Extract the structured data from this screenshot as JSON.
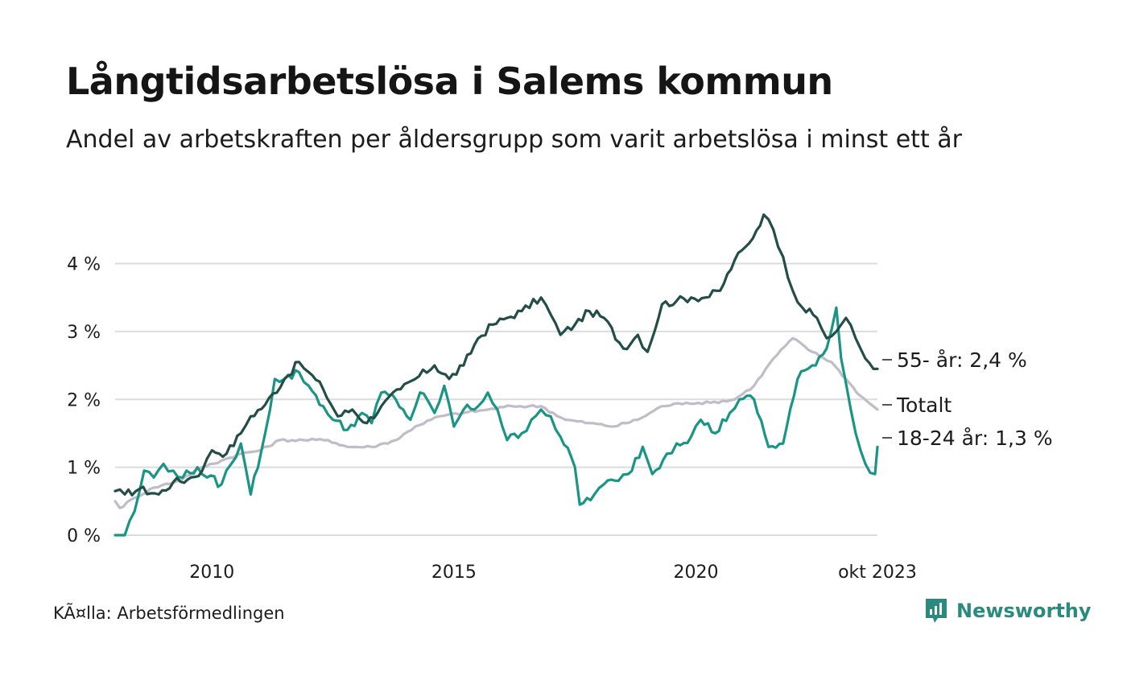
{
  "title": "Långtidsarbetslösa i Salems kommun",
  "subtitle": "Andel av arbetskraften per åldersgrupp som varit arbetslösa i minst ett år",
  "source": "KÃ¤lla: Arbetsförmedlingen",
  "brand": "Newsworthy",
  "colors": {
    "series_55": "#234d47",
    "series_total": "#c0bcc8",
    "series_1824": "#1a9585",
    "grid": "#dcdcdc",
    "brand": "#2b8a7e"
  },
  "chart_data": {
    "type": "line",
    "title": "Långtidsarbetslösa i Salems kommun",
    "xlabel": "",
    "ylabel": "",
    "x_start": "2008-01",
    "x_end": "2023-10",
    "xlim": [
      2008.0,
      2023.75
    ],
    "ylim": [
      0,
      4.8
    ],
    "yticks": [
      0,
      1,
      2,
      3,
      4
    ],
    "ytick_labels": [
      "0 %",
      "1 %",
      "2 %",
      "3 %",
      "4 %"
    ],
    "xticks": [
      2010,
      2015,
      2020,
      2023.75
    ],
    "xtick_labels": [
      "2010",
      "2015",
      "2020",
      "okt 2023"
    ],
    "grid": true,
    "series": [
      {
        "name": "55- år",
        "end_label": "55- år: 2,4 %",
        "color": "#234d47",
        "anchors": [
          [
            2008.0,
            0.65
          ],
          [
            2008.2,
            0.6
          ],
          [
            2008.5,
            0.68
          ],
          [
            2008.9,
            0.6
          ],
          [
            2009.2,
            0.78
          ],
          [
            2009.5,
            0.82
          ],
          [
            2009.8,
            0.95
          ],
          [
            2010.0,
            1.25
          ],
          [
            2010.3,
            1.2
          ],
          [
            2010.6,
            1.5
          ],
          [
            2010.8,
            1.75
          ],
          [
            2011.1,
            1.92
          ],
          [
            2011.5,
            2.3
          ],
          [
            2011.8,
            2.55
          ],
          [
            2012.0,
            2.4
          ],
          [
            2012.3,
            2.15
          ],
          [
            2012.6,
            1.75
          ],
          [
            2012.9,
            1.85
          ],
          [
            2013.2,
            1.65
          ],
          [
            2013.5,
            1.9
          ],
          [
            2013.9,
            2.15
          ],
          [
            2014.2,
            2.3
          ],
          [
            2014.6,
            2.5
          ],
          [
            2014.9,
            2.3
          ],
          [
            2015.2,
            2.5
          ],
          [
            2015.5,
            2.9
          ],
          [
            2015.8,
            3.1
          ],
          [
            2016.1,
            3.2
          ],
          [
            2016.4,
            3.3
          ],
          [
            2016.8,
            3.5
          ],
          [
            2017.0,
            3.25
          ],
          [
            2017.2,
            2.95
          ],
          [
            2017.5,
            3.1
          ],
          [
            2017.8,
            3.3
          ],
          [
            2018.1,
            3.2
          ],
          [
            2018.5,
            2.75
          ],
          [
            2018.8,
            2.95
          ],
          [
            2019.0,
            2.7
          ],
          [
            2019.3,
            3.4
          ],
          [
            2019.6,
            3.45
          ],
          [
            2019.9,
            3.5
          ],
          [
            2020.2,
            3.5
          ],
          [
            2020.5,
            3.6
          ],
          [
            2020.8,
            4.05
          ],
          [
            2021.1,
            4.3
          ],
          [
            2021.4,
            4.72
          ],
          [
            2021.6,
            4.5
          ],
          [
            2021.8,
            4.1
          ],
          [
            2022.0,
            3.6
          ],
          [
            2022.2,
            3.35
          ],
          [
            2022.5,
            3.2
          ],
          [
            2022.7,
            2.9
          ],
          [
            2022.9,
            3.0
          ],
          [
            2023.1,
            3.2
          ],
          [
            2023.3,
            2.9
          ],
          [
            2023.5,
            2.6
          ],
          [
            2023.75,
            2.45
          ]
        ]
      },
      {
        "name": "Totalt",
        "end_label": "Totalt",
        "color": "#c0bcc8",
        "anchors": [
          [
            2008.0,
            0.5
          ],
          [
            2008.1,
            0.4
          ],
          [
            2008.4,
            0.55
          ],
          [
            2008.8,
            0.7
          ],
          [
            2009.3,
            0.8
          ],
          [
            2009.8,
            1.0
          ],
          [
            2010.2,
            1.1
          ],
          [
            2010.6,
            1.2
          ],
          [
            2011.0,
            1.25
          ],
          [
            2011.4,
            1.4
          ],
          [
            2011.9,
            1.4
          ],
          [
            2012.4,
            1.4
          ],
          [
            2012.8,
            1.3
          ],
          [
            2013.3,
            1.3
          ],
          [
            2013.8,
            1.4
          ],
          [
            2014.2,
            1.6
          ],
          [
            2014.7,
            1.75
          ],
          [
            2015.2,
            1.8
          ],
          [
            2015.7,
            1.85
          ],
          [
            2016.2,
            1.9
          ],
          [
            2016.8,
            1.9
          ],
          [
            2017.3,
            1.7
          ],
          [
            2017.8,
            1.65
          ],
          [
            2018.3,
            1.6
          ],
          [
            2018.8,
            1.7
          ],
          [
            2019.3,
            1.9
          ],
          [
            2019.8,
            1.95
          ],
          [
            2020.3,
            1.95
          ],
          [
            2020.8,
            2.0
          ],
          [
            2021.2,
            2.2
          ],
          [
            2021.6,
            2.6
          ],
          [
            2022.0,
            2.9
          ],
          [
            2022.4,
            2.7
          ],
          [
            2022.8,
            2.55
          ],
          [
            2023.1,
            2.3
          ],
          [
            2023.4,
            2.05
          ],
          [
            2023.75,
            1.85
          ]
        ]
      },
      {
        "name": "18-24 år",
        "end_label": "18-24 år: 1,3 %",
        "color": "#1a9585",
        "anchors": [
          [
            2008.0,
            0.0
          ],
          [
            2008.2,
            0.0
          ],
          [
            2008.4,
            0.35
          ],
          [
            2008.6,
            0.95
          ],
          [
            2008.8,
            0.85
          ],
          [
            2009.0,
            1.05
          ],
          [
            2009.2,
            0.95
          ],
          [
            2009.4,
            0.85
          ],
          [
            2009.7,
            1.0
          ],
          [
            2009.9,
            0.85
          ],
          [
            2010.2,
            0.75
          ],
          [
            2010.4,
            1.05
          ],
          [
            2010.6,
            1.35
          ],
          [
            2010.8,
            0.6
          ],
          [
            2011.1,
            1.5
          ],
          [
            2011.3,
            2.3
          ],
          [
            2011.5,
            2.3
          ],
          [
            2011.8,
            2.4
          ],
          [
            2012.0,
            2.2
          ],
          [
            2012.3,
            1.9
          ],
          [
            2012.5,
            1.7
          ],
          [
            2012.8,
            1.55
          ],
          [
            2013.1,
            1.8
          ],
          [
            2013.3,
            1.65
          ],
          [
            2013.5,
            2.1
          ],
          [
            2013.8,
            2.0
          ],
          [
            2014.1,
            1.7
          ],
          [
            2014.3,
            2.1
          ],
          [
            2014.6,
            1.8
          ],
          [
            2014.8,
            2.2
          ],
          [
            2015.0,
            1.6
          ],
          [
            2015.2,
            1.85
          ],
          [
            2015.5,
            1.9
          ],
          [
            2015.7,
            2.1
          ],
          [
            2015.9,
            1.85
          ],
          [
            2016.1,
            1.4
          ],
          [
            2016.4,
            1.5
          ],
          [
            2016.6,
            1.7
          ],
          [
            2016.8,
            1.85
          ],
          [
            2017.0,
            1.75
          ],
          [
            2017.2,
            1.45
          ],
          [
            2017.5,
            1.0
          ],
          [
            2017.6,
            0.45
          ],
          [
            2017.9,
            0.6
          ],
          [
            2018.1,
            0.75
          ],
          [
            2018.4,
            0.8
          ],
          [
            2018.6,
            0.9
          ],
          [
            2018.9,
            1.3
          ],
          [
            2019.1,
            0.9
          ],
          [
            2019.4,
            1.2
          ],
          [
            2019.6,
            1.35
          ],
          [
            2019.9,
            1.45
          ],
          [
            2020.1,
            1.7
          ],
          [
            2020.4,
            1.5
          ],
          [
            2020.7,
            1.8
          ],
          [
            2020.9,
            2.0
          ],
          [
            2021.2,
            2.0
          ],
          [
            2021.5,
            1.3
          ],
          [
            2021.8,
            1.35
          ],
          [
            2022.1,
            2.3
          ],
          [
            2022.4,
            2.5
          ],
          [
            2022.7,
            2.75
          ],
          [
            2022.9,
            3.35
          ],
          [
            2023.0,
            2.6
          ],
          [
            2023.2,
            1.85
          ],
          [
            2023.4,
            1.25
          ],
          [
            2023.5,
            1.05
          ],
          [
            2023.7,
            0.9
          ],
          [
            2023.75,
            1.3
          ]
        ]
      }
    ]
  }
}
